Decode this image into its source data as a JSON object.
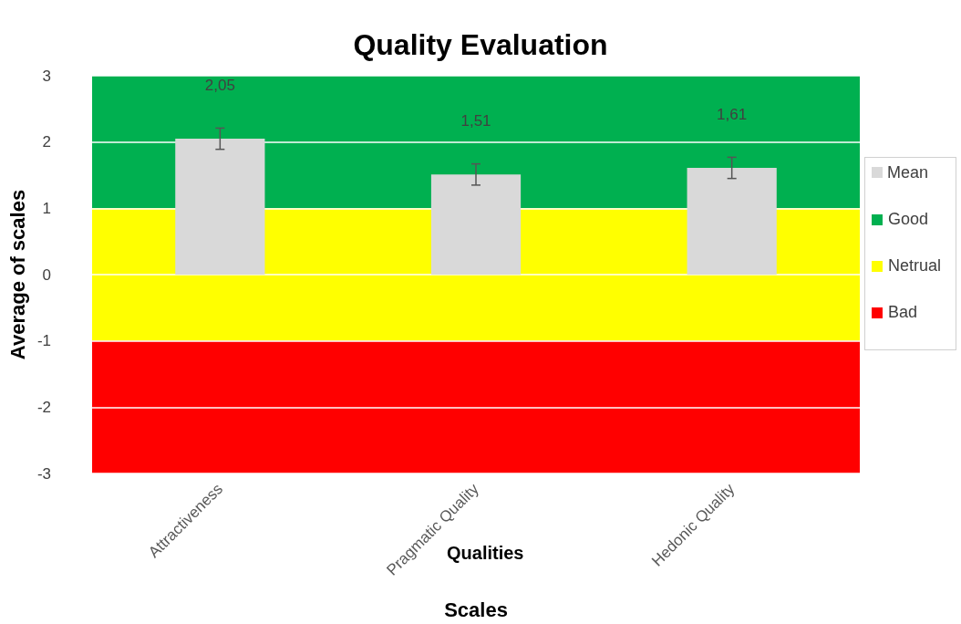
{
  "chart_data": {
    "type": "bar",
    "title": "Quality Evaluation",
    "xlabel": "Scales",
    "ylabel": "Average of scales",
    "annotations": [
      "Qualities"
    ],
    "categories": [
      "Attractiveness",
      "Pragmatic Quality",
      "Hedonic Quality"
    ],
    "series": [
      {
        "name": "Mean",
        "color": "#d9d9d9",
        "values": [
          2.05,
          1.51,
          1.61
        ],
        "errors": [
          0.16,
          0.16,
          0.16
        ],
        "value_labels": [
          "2,05",
          "1,51",
          "1,61"
        ]
      }
    ],
    "bands": [
      {
        "axis": "y",
        "from": 1,
        "to": 3,
        "label": "Good",
        "color": "#00b050"
      },
      {
        "axis": "y",
        "from": -1,
        "to": 1,
        "label": "Netrual",
        "color": "#ffff00"
      },
      {
        "axis": "y",
        "from": -3,
        "to": -1,
        "label": "Bad",
        "color": "#ff0000"
      }
    ],
    "ylim": [
      -3,
      3
    ],
    "yticks": [
      -3,
      -2,
      -1,
      0,
      1,
      2,
      3
    ],
    "grid": "y",
    "legend": "right"
  }
}
